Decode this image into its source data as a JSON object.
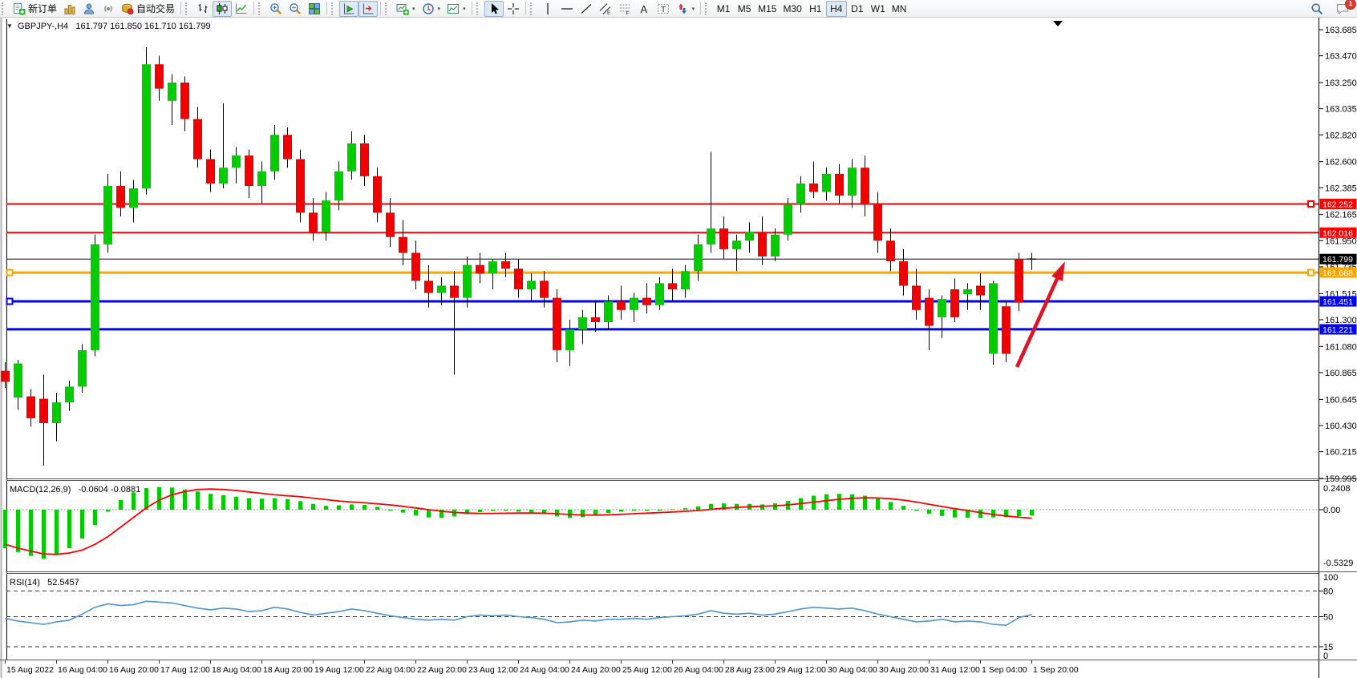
{
  "toolbar": {
    "groups": [
      [
        {
          "name": "new-order-button",
          "icon": "new-order",
          "label": "新订单"
        },
        {
          "name": "market-watch-button",
          "icon": "chart-gold"
        },
        {
          "name": "navigator-button",
          "icon": "navigator"
        },
        {
          "name": "signals-button",
          "icon": "signals"
        },
        {
          "name": "autotrading-button",
          "icon": "autotrading",
          "label": "自动交易"
        }
      ],
      [
        {
          "name": "bar-chart-button",
          "icon": "bars"
        },
        {
          "name": "candlestick-chart-button",
          "icon": "candles",
          "pressed": true
        },
        {
          "name": "line-chart-button",
          "icon": "line"
        }
      ],
      [
        {
          "name": "zoom-in-button",
          "icon": "zoom-in"
        },
        {
          "name": "zoom-out-button",
          "icon": "zoom-out"
        },
        {
          "name": "tile-windows-button",
          "icon": "tile"
        }
      ],
      [
        {
          "name": "auto-scroll-button",
          "icon": "auto-scroll",
          "pressed": true
        },
        {
          "name": "chart-shift-button",
          "icon": "chart-shift",
          "pressed": true
        }
      ],
      [
        {
          "name": "new-chart-button",
          "icon": "new-chart",
          "dropdown": true
        },
        {
          "name": "periods-button",
          "icon": "clock",
          "dropdown": true
        },
        {
          "name": "templates-button",
          "icon": "template",
          "dropdown": true
        }
      ],
      [
        {
          "name": "cursor-button",
          "icon": "cursor",
          "pressed": true
        },
        {
          "name": "crosshair-button",
          "icon": "crosshair"
        }
      ],
      [
        {
          "name": "vertical-line-button",
          "icon": "vline"
        },
        {
          "name": "horizontal-line-button",
          "icon": "hline"
        },
        {
          "name": "trendline-button",
          "icon": "trendline"
        },
        {
          "name": "equidistant-channel-button",
          "icon": "channel"
        },
        {
          "name": "fibonacci-button",
          "icon": "fibo"
        },
        {
          "name": "text-button",
          "icon": "text-a"
        },
        {
          "name": "text-label-button",
          "icon": "text-label"
        },
        {
          "name": "arrows-button",
          "icon": "shapes",
          "dropdown": true
        }
      ],
      [
        {
          "name": "tf-m1-button",
          "label": "M1",
          "tf": true
        },
        {
          "name": "tf-m5-button",
          "label": "M5",
          "tf": true
        },
        {
          "name": "tf-m15-button",
          "label": "M15",
          "tf": true
        },
        {
          "name": "tf-m30-button",
          "label": "M30",
          "tf": true
        },
        {
          "name": "tf-h1-button",
          "label": "H1",
          "tf": true
        },
        {
          "name": "tf-h4-button",
          "label": "H4",
          "tf": true,
          "pressed": true
        },
        {
          "name": "tf-d1-button",
          "label": "D1",
          "tf": true
        },
        {
          "name": "tf-w1-button",
          "label": "W1",
          "tf": true
        },
        {
          "name": "tf-mn-button",
          "label": "MN",
          "tf": true
        }
      ]
    ],
    "right": [
      {
        "name": "search-button",
        "icon": "search"
      },
      {
        "name": "chat-button",
        "icon": "chat",
        "badge": "1"
      }
    ]
  },
  "chart_data": {
    "type": "candlestick",
    "symbol": "GBPJPY",
    "timeframe": "H4",
    "title_symbol": "GBPJPY-,H4",
    "title_ohlc": "161.797 161.850 161.710 161.799",
    "current_price": 161.799,
    "y_axis_ticks": [
      "163.685",
      "163.470",
      "163.250",
      "163.035",
      "162.820",
      "162.600",
      "162.385",
      "162.165",
      "161.950",
      "161.735",
      "161.515",
      "161.300",
      "161.080",
      "160.865",
      "160.645",
      "160.430",
      "160.215",
      "159.995"
    ],
    "x_labels": [
      "15 Aug 2022",
      "16 Aug 04:00",
      "16 Aug 20:00",
      "17 Aug 12:00",
      "18 Aug 04:00",
      "18 Aug 20:00",
      "19 Aug 12:00",
      "22 Aug 04:00",
      "22 Aug 20:00",
      "23 Aug 12:00",
      "24 Aug 04:00",
      "24 Aug 20:00",
      "25 Aug 12:00",
      "26 Aug 04:00",
      "28 Aug 23:00",
      "29 Aug 12:00",
      "30 Aug 04:00",
      "30 Aug 20:00",
      "31 Aug 12:00",
      "1 Sep 04:00",
      "1 Sep 20:00"
    ],
    "hlines": [
      {
        "price": 162.252,
        "color": "#FF0000",
        "width": 2,
        "label": "162.252",
        "left_anchor": false,
        "right_anchor": true
      },
      {
        "price": 162.016,
        "color": "#FF0000",
        "width": 2,
        "label": "162.016",
        "left_anchor": false,
        "right_anchor": false
      },
      {
        "price": 161.799,
        "color": "#000000",
        "width": 1,
        "label": "161.799",
        "left_anchor": false,
        "right_anchor": false
      },
      {
        "price": 161.688,
        "color": "#FFA500",
        "width": 3,
        "label": "161.688",
        "left_anchor": true,
        "right_anchor": true
      },
      {
        "price": 161.451,
        "color": "#0000FF",
        "width": 3,
        "label": "161.451",
        "left_anchor": true,
        "right_anchor": false
      },
      {
        "price": 161.221,
        "color": "#0000FF",
        "width": 3,
        "label": "161.221",
        "left_anchor": false,
        "right_anchor": false
      }
    ],
    "candles": [
      [
        160.88,
        160.95,
        160.74,
        160.79
      ],
      [
        160.66,
        160.97,
        160.56,
        160.94
      ],
      [
        160.67,
        160.73,
        160.42,
        160.49
      ],
      [
        160.65,
        160.85,
        160.1,
        160.45
      ],
      [
        160.45,
        160.7,
        160.3,
        160.62
      ],
      [
        160.62,
        160.8,
        160.55,
        160.75
      ],
      [
        160.75,
        161.1,
        160.7,
        161.05
      ],
      [
        161.05,
        162.0,
        161.0,
        161.92
      ],
      [
        161.92,
        162.5,
        161.85,
        162.4
      ],
      [
        162.4,
        162.52,
        162.15,
        162.22
      ],
      [
        162.22,
        162.45,
        162.1,
        162.38
      ],
      [
        162.38,
        163.54,
        162.33,
        163.4
      ],
      [
        163.4,
        163.47,
        163.1,
        163.2
      ],
      [
        163.1,
        163.32,
        162.9,
        163.25
      ],
      [
        163.25,
        163.3,
        162.85,
        162.95
      ],
      [
        162.95,
        163.05,
        162.55,
        162.62
      ],
      [
        162.62,
        162.7,
        162.35,
        162.42
      ],
      [
        162.42,
        163.08,
        162.38,
        162.55
      ],
      [
        162.55,
        162.72,
        162.42,
        162.65
      ],
      [
        162.65,
        162.7,
        162.3,
        162.4
      ],
      [
        162.4,
        162.6,
        162.25,
        162.52
      ],
      [
        162.52,
        162.9,
        162.45,
        162.82
      ],
      [
        162.82,
        162.88,
        162.55,
        162.62
      ],
      [
        162.62,
        162.7,
        162.1,
        162.18
      ],
      [
        162.18,
        162.3,
        161.95,
        162.02
      ],
      [
        162.02,
        162.35,
        161.95,
        162.28
      ],
      [
        162.28,
        162.6,
        162.2,
        162.52
      ],
      [
        162.52,
        162.85,
        162.45,
        162.75
      ],
      [
        162.75,
        162.82,
        162.4,
        162.48
      ],
      [
        162.48,
        162.55,
        162.1,
        162.18
      ],
      [
        162.18,
        162.3,
        161.9,
        161.98
      ],
      [
        161.98,
        162.12,
        161.75,
        161.85
      ],
      [
        161.85,
        161.95,
        161.55,
        161.62
      ],
      [
        161.62,
        161.75,
        161.4,
        161.52
      ],
      [
        161.52,
        161.65,
        161.42,
        161.58
      ],
      [
        161.58,
        161.7,
        160.85,
        161.48
      ],
      [
        161.48,
        161.82,
        161.4,
        161.75
      ],
      [
        161.75,
        161.85,
        161.6,
        161.68
      ],
      [
        161.68,
        161.8,
        161.55,
        161.78
      ],
      [
        161.78,
        161.85,
        161.65,
        161.72
      ],
      [
        161.72,
        161.8,
        161.48,
        161.55
      ],
      [
        161.55,
        161.68,
        161.45,
        161.62
      ],
      [
        161.62,
        161.7,
        161.4,
        161.48
      ],
      [
        161.48,
        161.55,
        160.95,
        161.05
      ],
      [
        161.05,
        161.3,
        160.92,
        161.22
      ],
      [
        161.22,
        161.38,
        161.1,
        161.32
      ],
      [
        161.32,
        161.45,
        161.2,
        161.28
      ],
      [
        161.28,
        161.5,
        161.22,
        161.45
      ],
      [
        161.45,
        161.58,
        161.3,
        161.38
      ],
      [
        161.38,
        161.52,
        161.28,
        161.48
      ],
      [
        161.48,
        161.6,
        161.35,
        161.42
      ],
      [
        161.42,
        161.65,
        161.38,
        161.6
      ],
      [
        161.6,
        161.72,
        161.45,
        161.55
      ],
      [
        161.55,
        161.75,
        161.48,
        161.7
      ],
      [
        161.7,
        162.0,
        161.62,
        161.92
      ],
      [
        161.92,
        162.68,
        161.85,
        162.05
      ],
      [
        162.05,
        162.15,
        161.8,
        161.88
      ],
      [
        161.88,
        162.0,
        161.7,
        161.95
      ],
      [
        161.95,
        162.1,
        161.85,
        162.02
      ],
      [
        162.02,
        162.15,
        161.75,
        161.82
      ],
      [
        161.82,
        162.05,
        161.78,
        162.0
      ],
      [
        162.0,
        162.3,
        161.95,
        162.25
      ],
      [
        162.25,
        162.48,
        162.18,
        162.42
      ],
      [
        162.42,
        162.6,
        162.3,
        162.35
      ],
      [
        162.35,
        162.55,
        162.28,
        162.5
      ],
      [
        162.5,
        162.58,
        162.25,
        162.32
      ],
      [
        162.32,
        162.62,
        162.22,
        162.55
      ],
      [
        162.55,
        162.65,
        162.15,
        162.25
      ],
      [
        162.25,
        162.35,
        161.85,
        161.95
      ],
      [
        161.95,
        162.05,
        161.7,
        161.78
      ],
      [
        161.78,
        161.88,
        161.5,
        161.58
      ],
      [
        161.58,
        161.72,
        161.3,
        161.38
      ],
      [
        161.48,
        161.55,
        161.05,
        161.25
      ],
      [
        161.32,
        161.5,
        161.15,
        161.47
      ],
      [
        161.55,
        161.64,
        161.28,
        161.32
      ],
      [
        161.51,
        161.6,
        161.38,
        161.55
      ],
      [
        161.58,
        161.68,
        161.38,
        161.5
      ],
      [
        161.02,
        161.62,
        160.93,
        161.6
      ],
      [
        161.41,
        161.45,
        160.95,
        161.02
      ],
      [
        161.8,
        161.85,
        161.37,
        161.44
      ],
      [
        161.797,
        161.85,
        161.71,
        161.799
      ]
    ],
    "indicators": [
      {
        "name": "MACD",
        "label": "MACD(12,26,9)",
        "values_text": "-0.0604 -0.0881",
        "axis_labels": [
          "0.2408",
          "0.00",
          "-0.5329"
        ],
        "histogram": [
          -0.4,
          -0.44,
          -0.48,
          -0.51,
          -0.46,
          -0.4,
          -0.3,
          -0.16,
          -0.02,
          0.1,
          0.18,
          0.225,
          0.235,
          0.23,
          0.21,
          0.19,
          0.165,
          0.15,
          0.135,
          0.12,
          0.115,
          0.12,
          0.11,
          0.09,
          0.06,
          0.04,
          0.045,
          0.055,
          0.05,
          0.03,
          0.0,
          -0.03,
          -0.06,
          -0.08,
          -0.085,
          -0.07,
          -0.045,
          -0.025,
          -0.012,
          -0.01,
          -0.02,
          -0.03,
          -0.045,
          -0.07,
          -0.085,
          -0.075,
          -0.055,
          -0.035,
          -0.02,
          -0.012,
          -0.01,
          -0.005,
          0.005,
          0.015,
          0.035,
          0.06,
          0.065,
          0.06,
          0.06,
          0.055,
          0.065,
          0.09,
          0.12,
          0.145,
          0.16,
          0.165,
          0.16,
          0.145,
          0.115,
          0.08,
          0.04,
          -0.005,
          -0.04,
          -0.065,
          -0.08,
          -0.085,
          -0.085,
          -0.08,
          -0.078,
          -0.07,
          -0.0604
        ],
        "signal": [
          -0.36,
          -0.4,
          -0.43,
          -0.46,
          -0.465,
          -0.45,
          -0.42,
          -0.36,
          -0.28,
          -0.18,
          -0.08,
          0.02,
          0.1,
          0.155,
          0.19,
          0.21,
          0.215,
          0.21,
          0.2,
          0.185,
          0.17,
          0.155,
          0.145,
          0.135,
          0.12,
          0.105,
          0.09,
          0.08,
          0.072,
          0.062,
          0.05,
          0.035,
          0.018,
          0.0,
          -0.016,
          -0.028,
          -0.035,
          -0.038,
          -0.038,
          -0.037,
          -0.035,
          -0.035,
          -0.037,
          -0.042,
          -0.05,
          -0.055,
          -0.056,
          -0.053,
          -0.048,
          -0.042,
          -0.036,
          -0.03,
          -0.024,
          -0.017,
          -0.008,
          0.004,
          0.015,
          0.024,
          0.031,
          0.036,
          0.041,
          0.05,
          0.063,
          0.078,
          0.094,
          0.108,
          0.118,
          0.123,
          0.122,
          0.114,
          0.1,
          0.08,
          0.057,
          0.033,
          0.011,
          -0.008,
          -0.03,
          -0.05,
          -0.065,
          -0.078,
          -0.0881
        ]
      },
      {
        "name": "RSI",
        "label": "RSI(14)",
        "value_text": "52.5457",
        "axis_labels": [
          "100",
          "80",
          "50",
          "15",
          "0"
        ],
        "levels": [
          80,
          50,
          15
        ],
        "series": [
          48,
          45,
          43,
          41,
          44,
          46,
          53,
          61,
          65,
          63,
          64,
          68,
          67,
          66,
          63,
          60,
          58,
          60,
          59,
          56,
          57,
          61,
          59,
          55,
          52,
          54,
          56,
          59,
          57,
          54,
          51,
          49,
          47,
          46,
          47,
          46,
          50,
          52,
          51,
          52,
          50,
          49,
          47,
          43,
          44,
          46,
          45,
          47,
          47,
          48,
          47,
          49,
          50,
          51,
          53,
          57,
          54,
          53,
          54,
          52,
          53,
          56,
          59,
          61,
          60,
          59,
          60,
          57,
          53,
          50,
          47,
          44,
          45,
          47,
          44,
          45,
          44,
          41,
          40,
          49,
          52.5457
        ]
      }
    ],
    "annotation_arrow": {
      "from": [
        1268,
        436
      ],
      "to": [
        1328,
        304
      ],
      "color": "#DD1424"
    },
    "time_marker_x": 1319,
    "colors": {
      "bull": "#00CC00",
      "bear": "#F00000",
      "wick": "#000000",
      "macd_hist": "#00CC00",
      "macd_signal": "#FF0000",
      "rsi_line": "#4D94D6",
      "axis_text": "#000000",
      "panel_border": "#000000",
      "window_edge": "#b0b0b0"
    }
  }
}
